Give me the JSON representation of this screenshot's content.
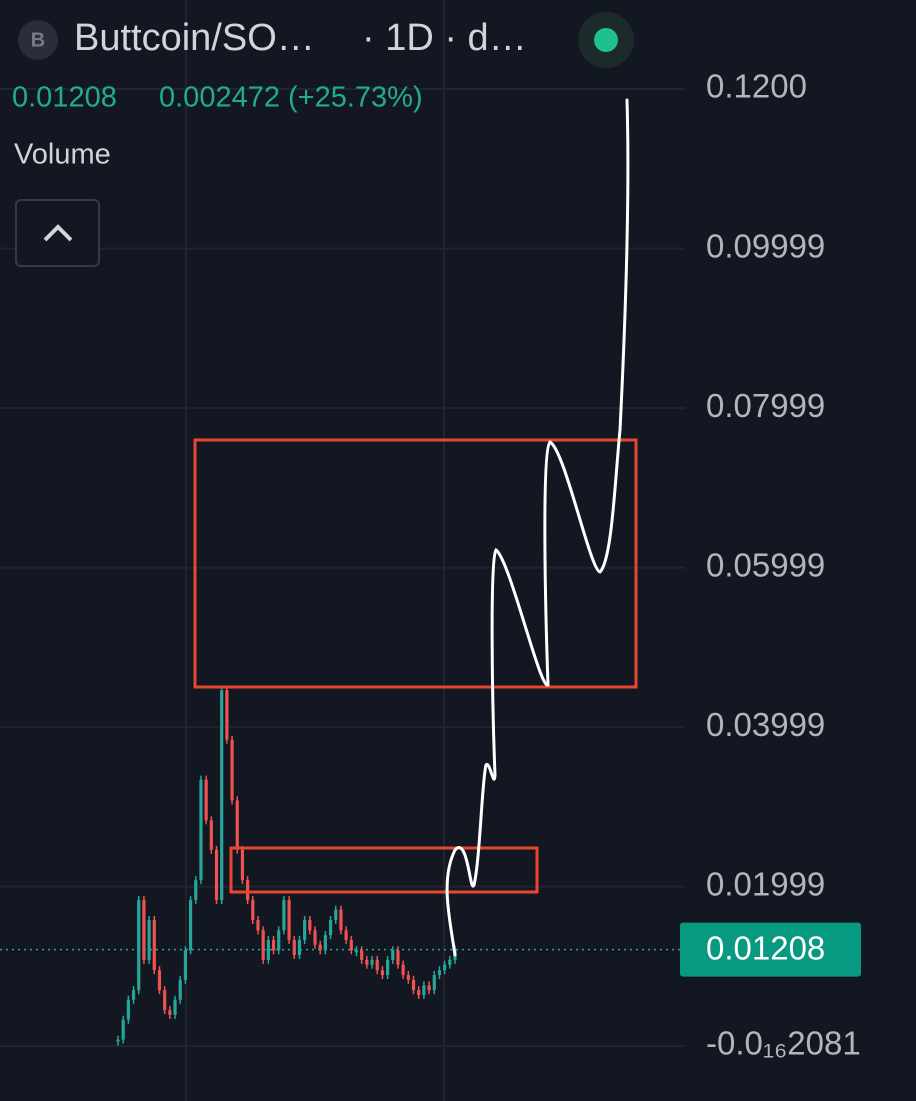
{
  "header": {
    "icon": "B",
    "symbol": "Buttcoin/SO…",
    "interval": "· 1D · d…",
    "price": "0.01208",
    "change": "0.002472 (+25.73%)",
    "indicator": "Volume"
  },
  "chart_data": {
    "type": "candlestick",
    "values": [
      0.0008,
      0.0033,
      0.0058,
      0.007,
      0.0183,
      0.0108,
      0.0158,
      0.0095,
      0.007,
      0.0045,
      0.0039,
      0.0058,
      0.0083,
      0.012,
      0.0183,
      0.0208,
      0.0334,
      0.0283,
      0.0246,
      0.0183,
      0.0446,
      0.0384,
      0.0308,
      0.0246,
      0.0208,
      0.0183,
      0.0158,
      0.0145,
      0.0108,
      0.0133,
      0.012,
      0.0145,
      0.0183,
      0.0133,
      0.0114,
      0.0133,
      0.0158,
      0.0145,
      0.0127,
      0.012,
      0.0139,
      0.0158,
      0.0171,
      0.0145,
      0.0133,
      0.012,
      0.012,
      0.0108,
      0.0102,
      0.0108,
      0.0095,
      0.0089,
      0.0108,
      0.012,
      0.0102,
      0.0089,
      0.0083,
      0.007,
      0.0064,
      0.0076,
      0.007,
      0.0089,
      0.0095,
      0.0102,
      0.0108,
      0.01208
    ],
    "up_color": "#26a69a",
    "down_color": "#ef5350",
    "last_price": {
      "value": 0.01208,
      "label": "0.01208"
    },
    "ylim": [
      -0.0004,
      0.1286
    ],
    "yticks": [
      {
        "value": -2.081e-17,
        "label": "-0.0₁₆2081"
      },
      0.01999,
      0.03999,
      0.05999,
      0.07999,
      0.09999,
      {
        "value": 0.12,
        "label": "0.1200"
      }
    ],
    "grid": true
  }
}
